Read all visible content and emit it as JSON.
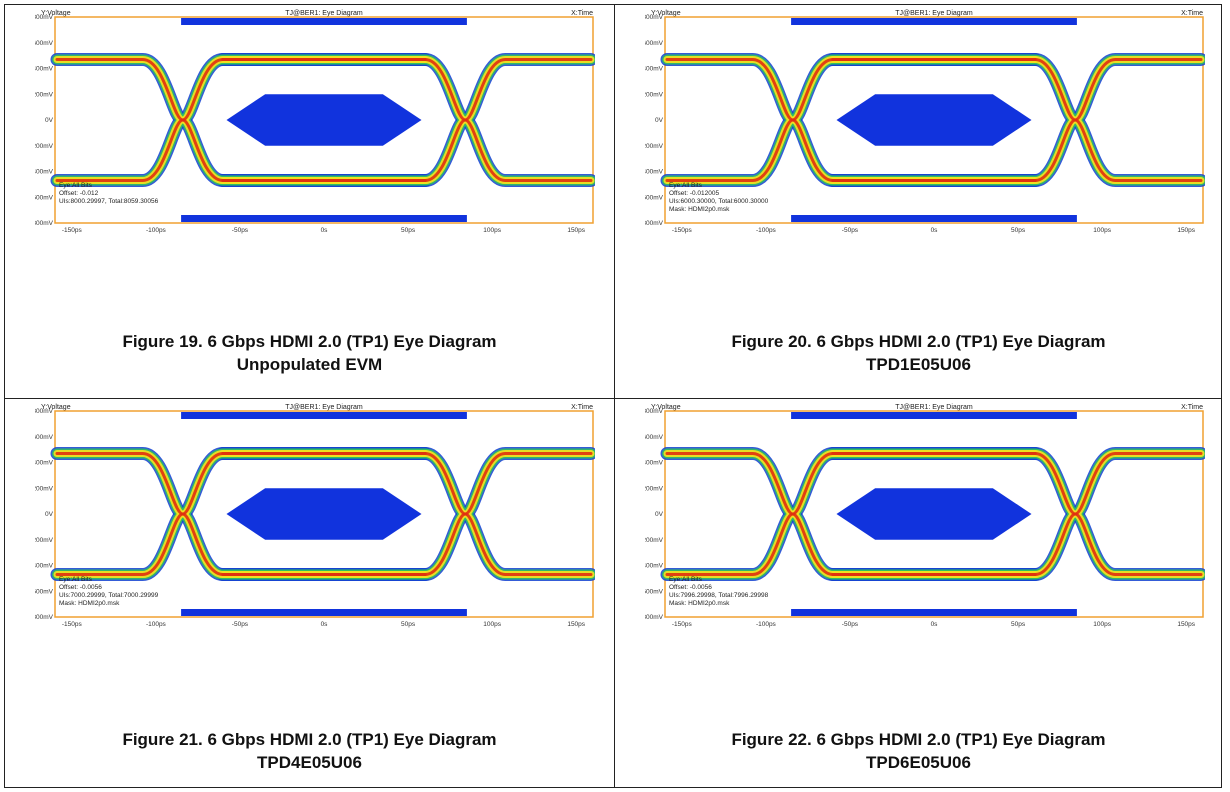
{
  "plot_header": {
    "left": "Y:Voltage",
    "center": "TJ@BER1: Eye Diagram",
    "right": "X:Time"
  },
  "y_ticks": [
    "800mV",
    "600mV",
    "400mV",
    "200mV",
    "0V",
    "-200mV",
    "-400mV",
    "-600mV",
    "-800mV"
  ],
  "x_ticks": [
    "-150ps",
    "-100ps",
    "-50ps",
    "0s",
    "50ps",
    "100ps",
    "150ps"
  ],
  "colors": {
    "frame": "#f0a030",
    "mask": "#1133dd",
    "trace_hot": "#e03010",
    "trace_warm": "#f0e020",
    "trace_cool": "#30c060",
    "trace_edge": "#1040d0"
  },
  "figures": [
    {
      "caption_line1": "Figure 19. 6 Gbps HDMI 2.0 (TP1) Eye Diagram",
      "caption_line2": "Unpopulated EVM",
      "info": [
        "Eye:All Bits",
        "Offset: -0.012",
        "UIs:8000.29997, Total:8059.30056"
      ]
    },
    {
      "caption_line1": "Figure 20. 6 Gbps HDMI 2.0 (TP1) Eye Diagram",
      "caption_line2": "TPD1E05U06",
      "info": [
        "Eye:All Bits",
        "Offset: -0.012005",
        "UIs:6000.30000, Total:6000.30000",
        "Mask: HDMI2p0.msk"
      ]
    },
    {
      "caption_line1": "Figure 21. 6 Gbps HDMI 2.0 (TP1) Eye Diagram",
      "caption_line2": "TPD4E05U06",
      "info": [
        "Eye:All Bits",
        "Offset: -0.0056",
        "UIs:7000.29999, Total:7000.29999",
        "Mask: HDMI2p0.msk"
      ]
    },
    {
      "caption_line1": "Figure 22. 6 Gbps HDMI 2.0 (TP1) Eye Diagram",
      "caption_line2": "TPD6E05U06",
      "info": [
        "Eye:All Bits",
        "Offset: -0.0056",
        "UIs:7996.29998, Total:7996.29998",
        "Mask: HDMI2p0.msk"
      ]
    }
  ]
}
